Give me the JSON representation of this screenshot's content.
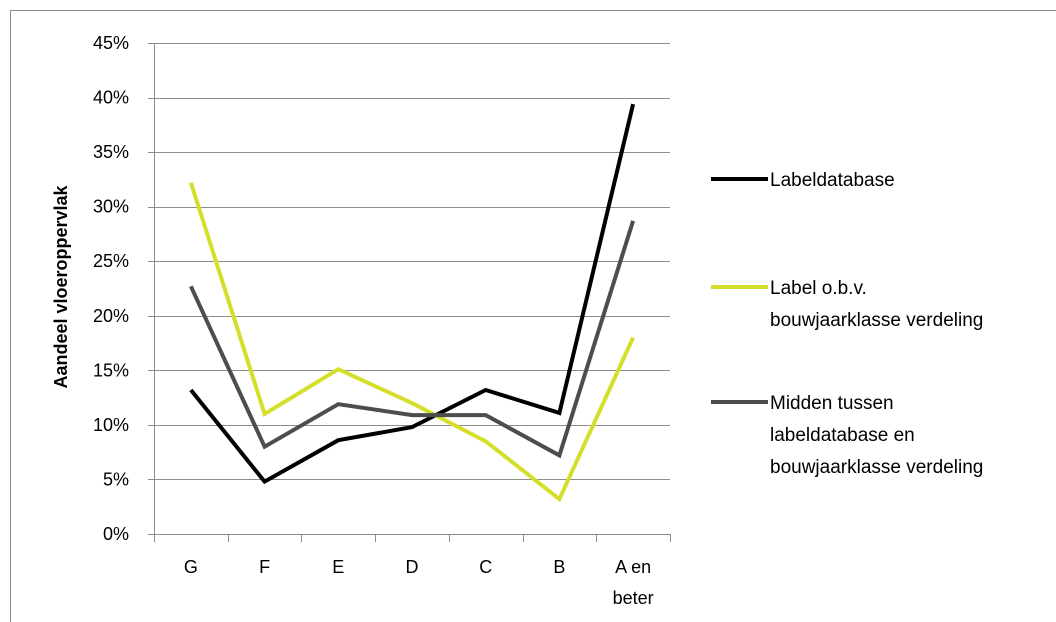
{
  "chart_data": {
    "type": "line",
    "title": "",
    "xlabel": "",
    "ylabel": "Aandeel vloeroppervlak",
    "categories": [
      "G",
      "F",
      "E",
      "D",
      "C",
      "B",
      "A en beter"
    ],
    "category_lines": [
      [
        "G"
      ],
      [
        "F"
      ],
      [
        "E"
      ],
      [
        "D"
      ],
      [
        "C"
      ],
      [
        "B"
      ],
      [
        "A en",
        "beter"
      ]
    ],
    "ylim": [
      0,
      0.45
    ],
    "yticks": [
      0,
      0.05,
      0.1,
      0.15,
      0.2,
      0.25,
      0.3,
      0.35,
      0.4,
      0.45
    ],
    "ytick_labels": [
      "0%",
      "5%",
      "10%",
      "15%",
      "20%",
      "25%",
      "30%",
      "35%",
      "40%",
      "45%"
    ],
    "grid": true,
    "legend_position": "right",
    "series": [
      {
        "name": "Labeldatabase",
        "name_lines": [
          "Labeldatabase"
        ],
        "color": "#000000",
        "values": [
          0.132,
          0.048,
          0.086,
          0.098,
          0.132,
          0.111,
          0.394
        ]
      },
      {
        "name": "Label o.b.v. bouwjaarklasse verdeling",
        "name_lines": [
          "Label o.b.v.",
          "bouwjaarklasse verdeling"
        ],
        "color": "#d4df2c",
        "values": [
          0.322,
          0.11,
          0.151,
          0.12,
          0.085,
          0.032,
          0.18
        ]
      },
      {
        "name": "Midden tussen labeldatabase en bouwjaarklasse verdeling",
        "name_lines": [
          "Midden tussen",
          "labeldatabase en",
          "bouwjaarklasse verdeling"
        ],
        "color": "#4d4d4d",
        "values": [
          0.227,
          0.08,
          0.119,
          0.109,
          0.109,
          0.072,
          0.287
        ]
      }
    ]
  }
}
